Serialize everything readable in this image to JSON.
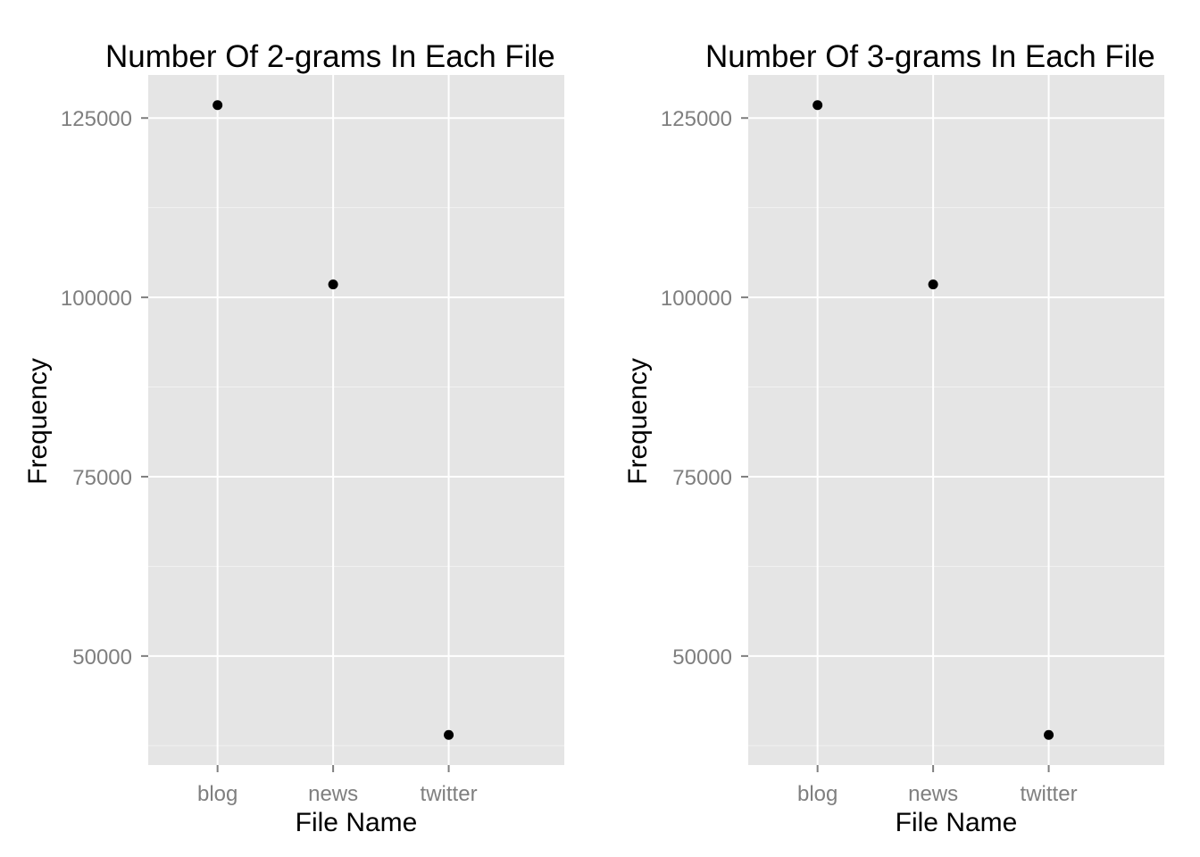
{
  "chart_data": [
    {
      "type": "scatter",
      "title": "Number Of 2-grams In Each  File",
      "xlabel": "File Name",
      "ylabel": "Frequency",
      "categories": [
        "blog",
        "news",
        "twitter"
      ],
      "values": [
        126800,
        101800,
        39000
      ],
      "y_ticks": [
        "50000",
        "75000",
        "100000",
        "125000"
      ],
      "ylim": [
        34800,
        131000
      ],
      "grid": true
    },
    {
      "type": "scatter",
      "title": "Number Of 3-grams In Each  File",
      "xlabel": "File Name",
      "ylabel": "Frequency",
      "categories": [
        "blog",
        "news",
        "twitter"
      ],
      "values": [
        126800,
        101800,
        39000
      ],
      "y_ticks": [
        "50000",
        "75000",
        "100000",
        "125000"
      ],
      "ylim": [
        34800,
        131000
      ],
      "grid": true
    }
  ]
}
